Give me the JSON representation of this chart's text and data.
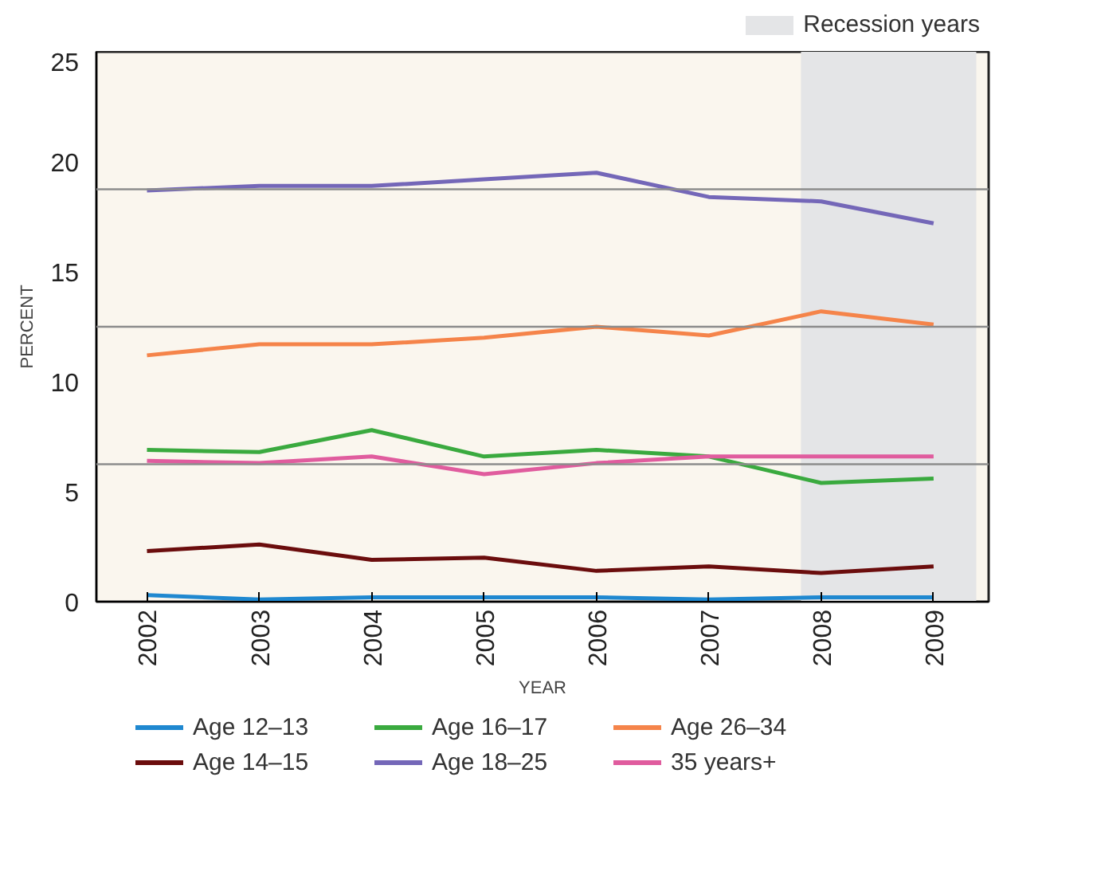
{
  "chart_data": {
    "type": "line",
    "x": [
      2002,
      2003,
      2004,
      2005,
      2006,
      2007,
      2008,
      2009
    ],
    "xlabel": "YEAR",
    "ylabel": "PERCENT",
    "xlim": [
      2001.55,
      2009.49
    ],
    "xticks": [
      2002,
      2003,
      2004,
      2005,
      2006,
      2007,
      2008,
      2009
    ],
    "ylim": [
      0,
      25
    ],
    "yticks": [
      0,
      5,
      10,
      15,
      20,
      25
    ],
    "series": [
      {
        "name": "Age 12–13",
        "color": "#1f88d0",
        "values": [
          0.3,
          0.1,
          0.2,
          0.2,
          0.2,
          0.1,
          0.2,
          0.2
        ]
      },
      {
        "name": "Age 14–15",
        "color": "#6b0d0d",
        "values": [
          2.3,
          2.6,
          1.9,
          2.0,
          1.4,
          1.6,
          1.3,
          1.6
        ]
      },
      {
        "name": "Age 16–17",
        "color": "#3aaa3f",
        "values": [
          6.9,
          6.8,
          7.8,
          6.6,
          6.9,
          6.6,
          5.4,
          5.6
        ]
      },
      {
        "name": "Age 18–25",
        "color": "#7467b8",
        "values": [
          18.7,
          18.9,
          18.9,
          19.2,
          19.5,
          18.4,
          18.2,
          17.2
        ]
      },
      {
        "name": "Age 26–34",
        "color": "#f5844a",
        "values": [
          11.2,
          11.7,
          11.7,
          12.0,
          12.5,
          12.1,
          13.2,
          12.6
        ]
      },
      {
        "name": "35 years+",
        "color": "#e05c9e",
        "values": [
          6.4,
          6.3,
          6.6,
          5.8,
          6.3,
          6.6,
          6.6,
          6.6
        ]
      }
    ],
    "bands": [
      {
        "axis": "x",
        "from": 2007.82,
        "to": 2009.38,
        "label": "Recession years",
        "color": "#e4e5e7"
      }
    ],
    "ref_lines": [
      {
        "axis": "y",
        "value": 6.25,
        "label": null,
        "color": "#8c8c8c"
      },
      {
        "axis": "y",
        "value": 12.5,
        "label": null,
        "color": "#8c8c8c"
      },
      {
        "axis": "y",
        "value": 18.75,
        "label": null,
        "color": "#8c8c8c"
      }
    ],
    "legend": "bottom",
    "grid": false,
    "marker": "none",
    "line_style": "solid"
  }
}
